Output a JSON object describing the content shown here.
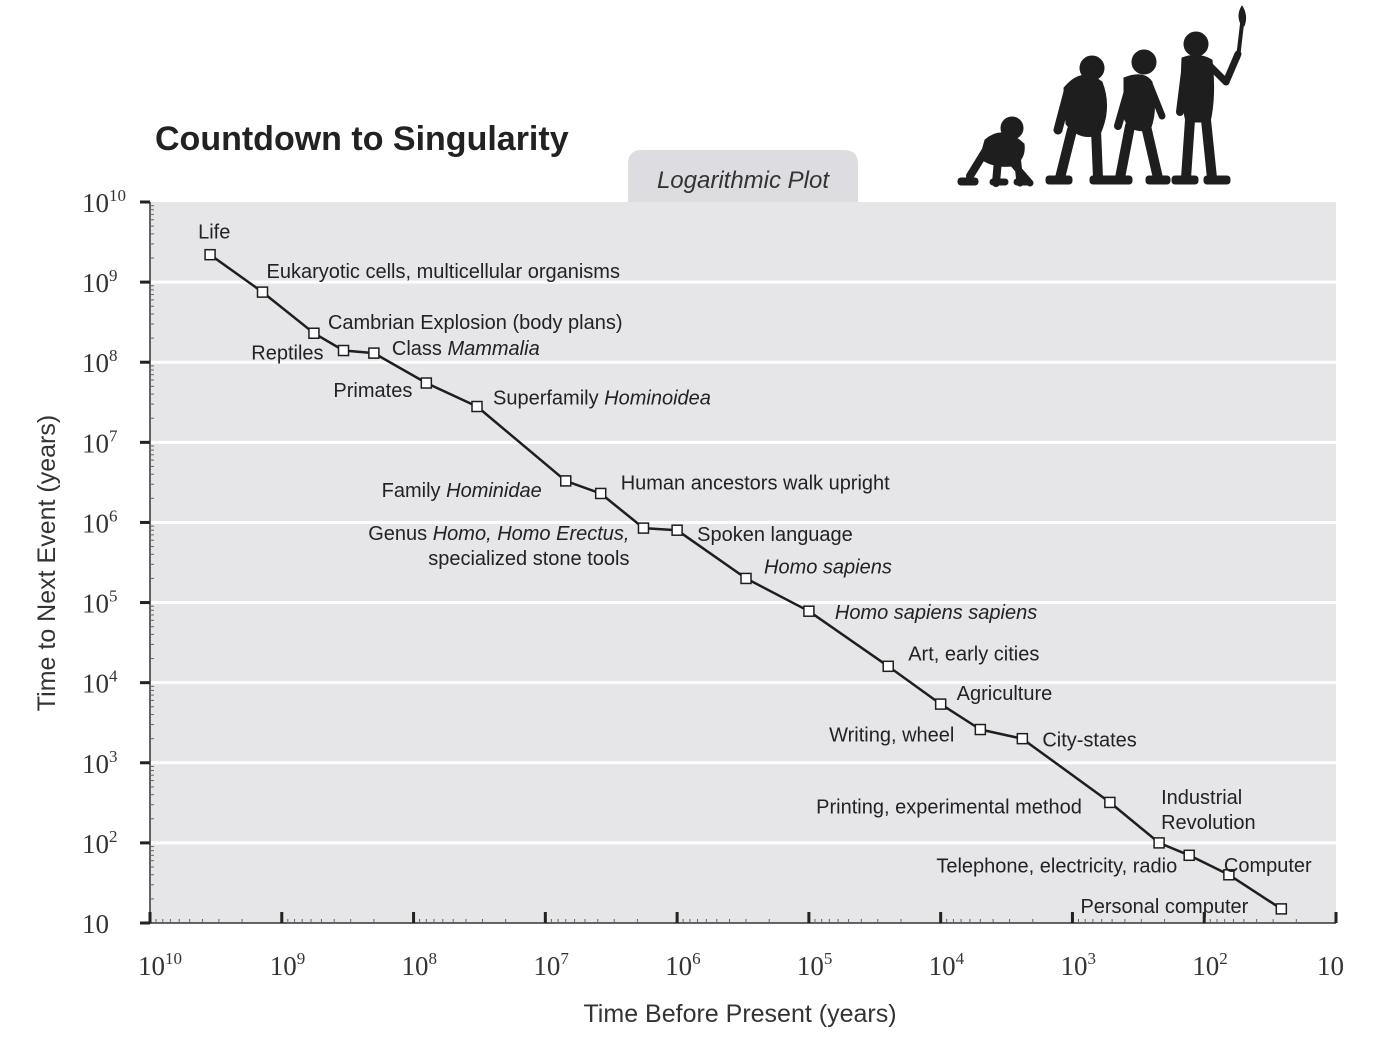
{
  "chart_data": {
    "type": "line",
    "title": "Countdown to Singularity",
    "subtitle": "Logarithmic Plot",
    "xlabel": "Time Before Present (years)",
    "ylabel": "Time to Next Event (years)",
    "x_scale": "log",
    "y_scale": "log",
    "x_reversed": true,
    "xlim": [
      10000000000,
      10
    ],
    "ylim": [
      10,
      10000000000
    ],
    "grid": true,
    "x_ticks": [
      {
        "value": 10000000000,
        "base": "10",
        "exp": "10"
      },
      {
        "value": 1000000000,
        "base": "10",
        "exp": "9"
      },
      {
        "value": 100000000,
        "base": "10",
        "exp": "8"
      },
      {
        "value": 10000000,
        "base": "10",
        "exp": "7"
      },
      {
        "value": 1000000,
        "base": "10",
        "exp": "6"
      },
      {
        "value": 100000,
        "base": "10",
        "exp": "5"
      },
      {
        "value": 10000,
        "base": "10",
        "exp": "4"
      },
      {
        "value": 1000,
        "base": "10",
        "exp": "3"
      },
      {
        "value": 100,
        "base": "10",
        "exp": "2"
      },
      {
        "value": 10,
        "base": "10",
        "exp": ""
      }
    ],
    "y_ticks": [
      {
        "value": 10000000000,
        "base": "10",
        "exp": "10"
      },
      {
        "value": 1000000000,
        "base": "10",
        "exp": "9"
      },
      {
        "value": 100000000,
        "base": "10",
        "exp": "8"
      },
      {
        "value": 10000000,
        "base": "10",
        "exp": "7"
      },
      {
        "value": 1000000,
        "base": "10",
        "exp": "6"
      },
      {
        "value": 100000,
        "base": "10",
        "exp": "5"
      },
      {
        "value": 10000,
        "base": "10",
        "exp": "4"
      },
      {
        "value": 1000,
        "base": "10",
        "exp": "3"
      },
      {
        "value": 100,
        "base": "10",
        "exp": "2"
      },
      {
        "value": 10,
        "base": "10",
        "exp": ""
      }
    ],
    "points": [
      {
        "x": 3500000000,
        "y": 2200000000,
        "label": [
          [
            {
              "t": "Life"
            }
          ]
        ]
      },
      {
        "x": 1400000000,
        "y": 750000000,
        "label": [
          [
            {
              "t": "Eukaryotic cells, multicellular organisms"
            }
          ]
        ]
      },
      {
        "x": 570000000,
        "y": 230000000,
        "label": [
          [
            {
              "t": "Cambrian Explosion (body plans)"
            }
          ]
        ]
      },
      {
        "x": 340000000,
        "y": 140000000,
        "label": [
          [
            {
              "t": "Reptiles"
            }
          ]
        ]
      },
      {
        "x": 200000000,
        "y": 130000000,
        "label": [
          [
            {
              "t": "Class "
            },
            {
              "t": "Mammalia",
              "i": true
            }
          ]
        ]
      },
      {
        "x": 80000000,
        "y": 55000000,
        "label": [
          [
            {
              "t": "Primates"
            }
          ]
        ]
      },
      {
        "x": 33000000,
        "y": 28000000,
        "label": [
          [
            {
              "t": "Superfamily "
            },
            {
              "t": "Hominoidea",
              "i": true
            }
          ]
        ]
      },
      {
        "x": 7000000,
        "y": 3300000,
        "label": [
          [
            {
              "t": "Family "
            },
            {
              "t": "Hominidae",
              "i": true
            }
          ]
        ]
      },
      {
        "x": 3800000,
        "y": 2300000,
        "label": [
          [
            {
              "t": "Human ancestors walk upright"
            }
          ]
        ]
      },
      {
        "x": 1800000,
        "y": 850000,
        "label": [
          [
            {
              "t": "Genus "
            },
            {
              "t": "Homo, Homo Erectus,",
              "i": true
            }
          ],
          [
            {
              "t": "specialized stone tools"
            }
          ]
        ]
      },
      {
        "x": 1000000,
        "y": 800000,
        "label": [
          [
            {
              "t": "Spoken language"
            }
          ]
        ]
      },
      {
        "x": 300000,
        "y": 200000,
        "label": [
          [
            {
              "t": "Homo sapiens",
              "i": true
            }
          ]
        ]
      },
      {
        "x": 100000,
        "y": 78000,
        "label": [
          [
            {
              "t": "Homo sapiens sapiens",
              "i": true
            }
          ]
        ]
      },
      {
        "x": 25000,
        "y": 16000,
        "label": [
          [
            {
              "t": "Art, early cities"
            }
          ]
        ]
      },
      {
        "x": 10000,
        "y": 5400,
        "label": [
          [
            {
              "t": "Agriculture"
            }
          ]
        ]
      },
      {
        "x": 5000,
        "y": 2600,
        "label": [
          [
            {
              "t": "Writing, wheel"
            }
          ]
        ]
      },
      {
        "x": 2400,
        "y": 2000,
        "label": [
          [
            {
              "t": "City-states"
            }
          ]
        ]
      },
      {
        "x": 520,
        "y": 320,
        "label": [
          [
            {
              "t": "Printing, experimental method"
            }
          ]
        ]
      },
      {
        "x": 220,
        "y": 100,
        "label": [
          [
            {
              "t": "Industrial"
            }
          ],
          [
            {
              "t": "Revolution"
            }
          ]
        ]
      },
      {
        "x": 130,
        "y": 70,
        "label": [
          [
            {
              "t": "Telephone,  electricity, radio"
            }
          ]
        ]
      },
      {
        "x": 65,
        "y": 40,
        "label": [
          [
            {
              "t": "Computer"
            }
          ]
        ]
      },
      {
        "x": 26,
        "y": 15,
        "label": [
          [
            {
              "t": "Personal computer"
            }
          ]
        ]
      }
    ]
  },
  "colors": {
    "plot_background": "#e6e6e9",
    "gridline": "#ffffff",
    "badge_background": "#dcdce1",
    "line": "#1e1e1e",
    "marker_fill": "#ffffff",
    "silhouette": "#1e1e1e"
  },
  "decoration": {
    "figures_icon": "human-evolution-silhouettes"
  }
}
